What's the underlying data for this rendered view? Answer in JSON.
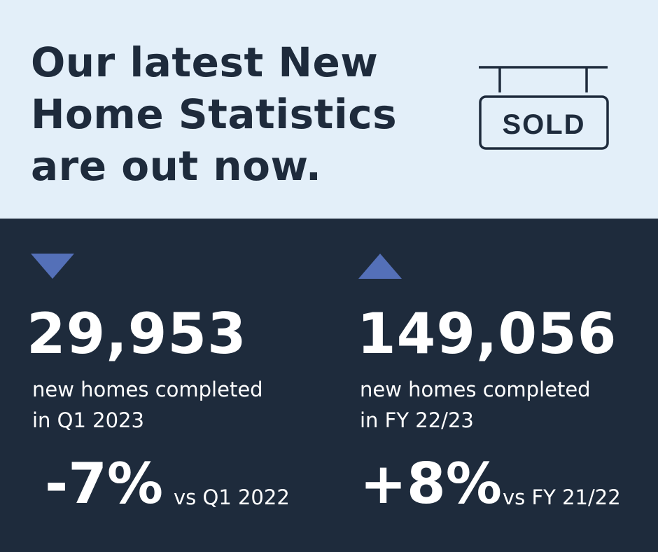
{
  "headline": {
    "line1": "Our latest New",
    "line2": "Home Statistics",
    "line3": "are out now."
  },
  "sign": {
    "text": "SOLD",
    "icon": "sold-sign-icon"
  },
  "colors": {
    "top_background": "#e3eff9",
    "bottom_background": "#1e2b3c",
    "accent": "#5470b8",
    "text_light": "#ffffff",
    "text_dark": "#1e2b3c"
  },
  "stats": [
    {
      "direction": "down",
      "arrow_icon": "down-triangle-icon",
      "value": "29,953",
      "desc_line1": "new homes completed",
      "desc_line2": "in Q1 2023",
      "change": "-7%",
      "comparison": "vs Q1 2022"
    },
    {
      "direction": "up",
      "arrow_icon": "up-triangle-icon",
      "value": "149,056",
      "desc_line1": "new homes completed",
      "desc_line2": "in FY 22/23",
      "change": "+8%",
      "comparison": "vs FY 21/22"
    }
  ]
}
